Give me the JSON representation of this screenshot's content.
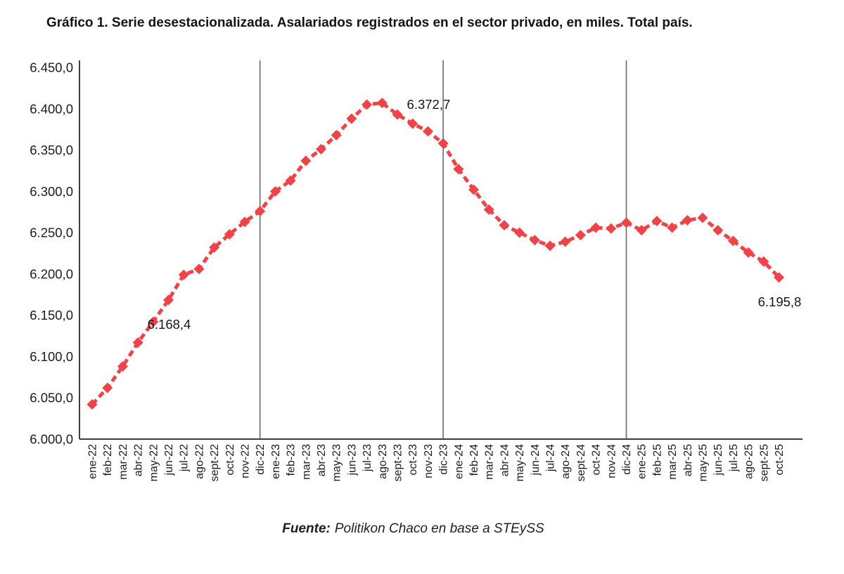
{
  "chart_data": {
    "type": "line",
    "title": "Gráfico 1. Serie desestacionalizada. Asalariados registrados en el sector privado, en miles. Total país.",
    "categories": [
      "ene-22",
      "feb-22",
      "mar-22",
      "abr-22",
      "may-22",
      "jun-22",
      "jul-22",
      "ago-22",
      "sept-22",
      "oct-22",
      "nov-22",
      "dic-22",
      "ene-23",
      "feb-23",
      "mar-23",
      "abr-23",
      "may-23",
      "jun-23",
      "jul-23",
      "ago-23",
      "sept-23",
      "oct-23",
      "nov-23",
      "dic-23",
      "ene-24",
      "feb-24",
      "mar-24",
      "abr-24",
      "may-24",
      "jun-24",
      "jul-24",
      "ago-24",
      "sept-24",
      "oct-24",
      "nov-24",
      "dic-24",
      "ene-25",
      "feb-25",
      "mar-25",
      "abr-25",
      "may-25",
      "jun-25",
      "jul-25",
      "ago-25",
      "sept-25",
      "oct-25"
    ],
    "values": [
      6042,
      6062,
      6088,
      6117,
      6142,
      6168.4,
      6199,
      6206,
      6232,
      6248,
      6263,
      6276,
      6300,
      6313,
      6337,
      6351,
      6368,
      6388,
      6405,
      6407,
      6393,
      6382,
      6372.7,
      6358,
      6327,
      6302,
      6278,
      6259,
      6250,
      6241,
      6234,
      6239,
      6247,
      6256,
      6255,
      6262,
      6253,
      6264,
      6256,
      6265,
      6268,
      6253,
      6240,
      6226,
      6215,
      6195.8
    ],
    "xlabel": "",
    "ylabel": "",
    "ylim": [
      6000,
      6450
    ],
    "ytick_step": 50,
    "ytick_labels": [
      "6.000,0",
      "6.050,0",
      "6.100,0",
      "6.150,0",
      "6.200,0",
      "6.250,0",
      "6.300,0",
      "6.350,0",
      "6.400,0",
      "6.450,0"
    ],
    "grid": "none",
    "legend_position": "none",
    "line_color": "#ee4449",
    "line_style": "dashed",
    "marker": "diamond",
    "axis_color": "#3d3d3d",
    "guide_color": "#6b6b6b",
    "vertical_guides": [
      "dic-22",
      "dic-23",
      "dic-24"
    ],
    "annotations": [
      {
        "category": "jun-22",
        "label": "6.168,4",
        "position": "below"
      },
      {
        "category": "nov-23",
        "label": "6.372,7",
        "position": "above"
      },
      {
        "category": "oct-25",
        "label": "6.195,8",
        "position": "below"
      }
    ]
  },
  "footer": {
    "source_label": "Fuente:",
    "source_text": "Politikon Chaco en base a STEySS"
  }
}
